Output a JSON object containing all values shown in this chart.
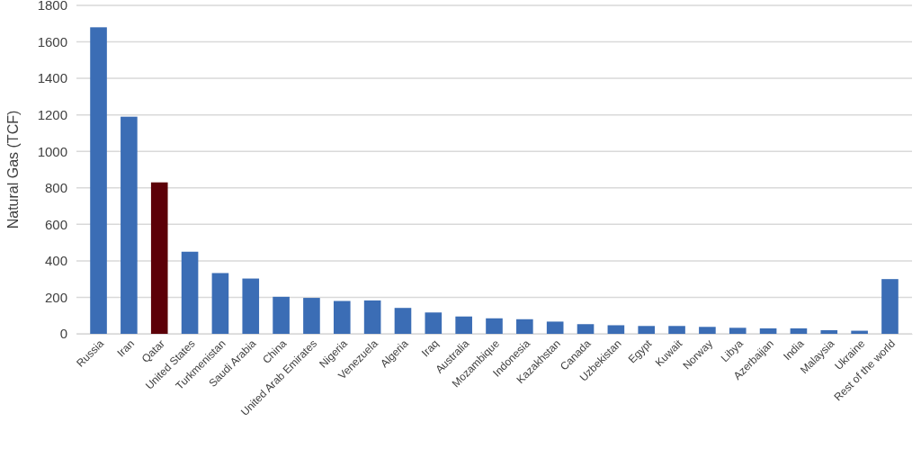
{
  "chart_data": {
    "type": "bar",
    "ylabel": "Natural Gas (TCF)",
    "categories": [
      "Russia",
      "Iran",
      "Qatar",
      "United States",
      "Turkmenistan",
      "Saudi Arabia",
      "China",
      "United Arab Emirates",
      "Nigeria",
      "Venezuela",
      "Algeria",
      "Iraq",
      "Australia",
      "Mozambique",
      "Indonesia",
      "Kazakhstan",
      "Canada",
      "Uzbekistan",
      "Egypt",
      "Kuwait",
      "Norway",
      "Libya",
      "Azerbaijan",
      "India",
      "Malaysia",
      "Ukraine",
      "Rest of the world"
    ],
    "values": [
      1680,
      1190,
      830,
      450,
      333,
      303,
      203,
      197,
      180,
      183,
      142,
      117,
      95,
      85,
      80,
      67,
      53,
      47,
      43,
      43,
      38,
      33,
      30,
      30,
      20,
      17,
      300
    ],
    "colors": [
      "#3b6db5",
      "#3b6db5",
      "#5c0008",
      "#3b6db5",
      "#3b6db5",
      "#3b6db5",
      "#3b6db5",
      "#3b6db5",
      "#3b6db5",
      "#3b6db5",
      "#3b6db5",
      "#3b6db5",
      "#3b6db5",
      "#3b6db5",
      "#3b6db5",
      "#3b6db5",
      "#3b6db5",
      "#3b6db5",
      "#3b6db5",
      "#3b6db5",
      "#3b6db5",
      "#3b6db5",
      "#3b6db5",
      "#3b6db5",
      "#3b6db5",
      "#3b6db5",
      "#3b6db5"
    ],
    "ylim": [
      0,
      1800
    ],
    "yticks": [
      0,
      200,
      400,
      600,
      800,
      1000,
      1200,
      1400,
      1600,
      1800
    ],
    "grid": "y"
  }
}
